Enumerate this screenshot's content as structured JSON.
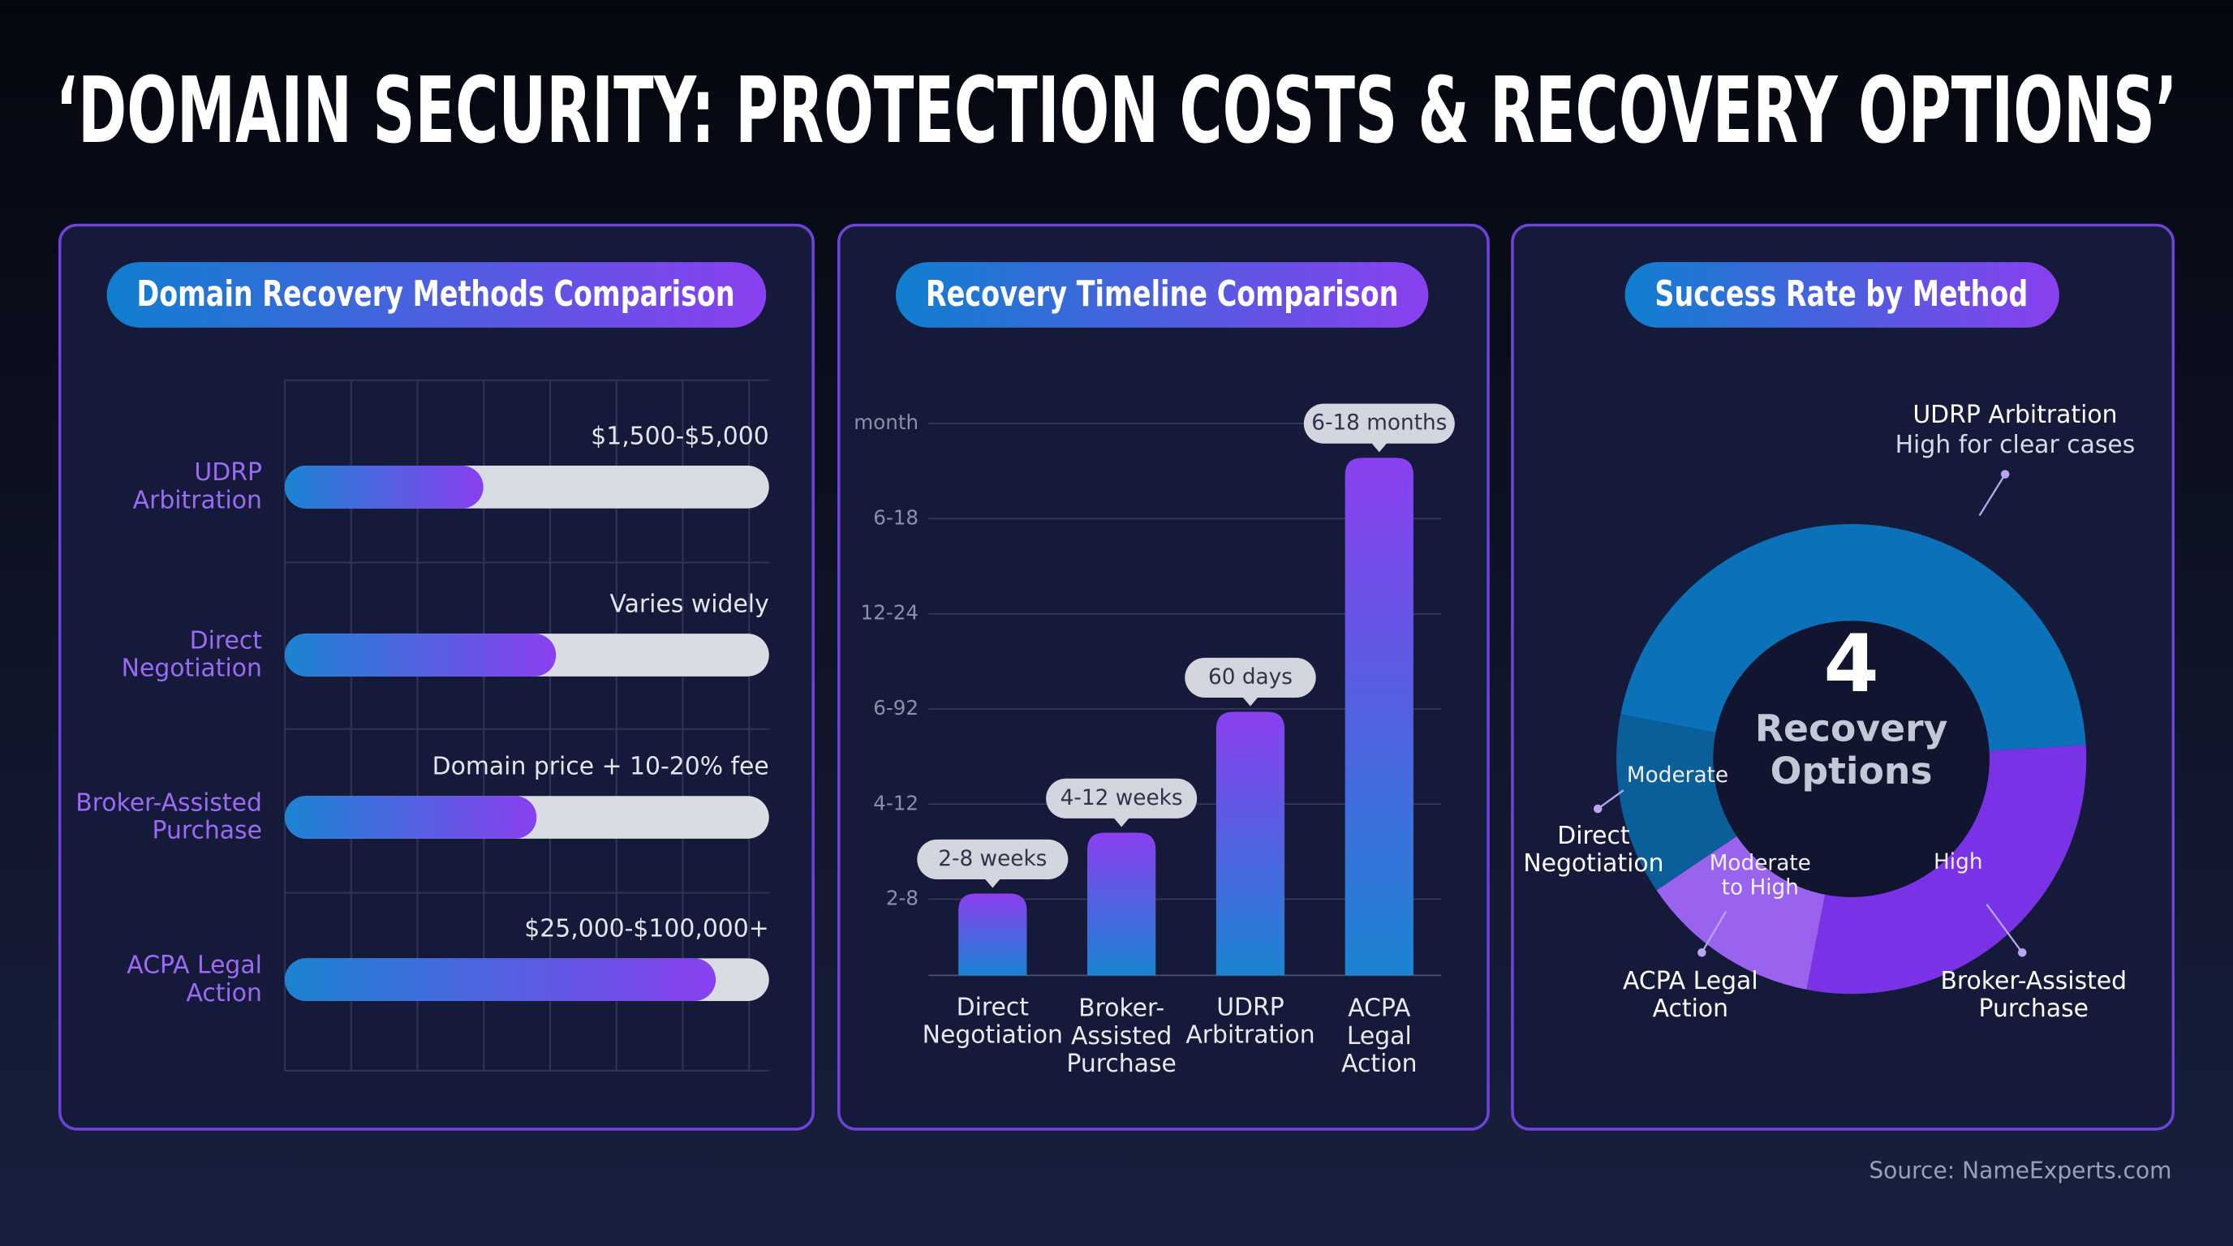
{
  "title": "‘DOMAIN SECURITY: PROTECTION COSTS & RECOVERY OPTIONS’",
  "source": "Source: NameExperts.com",
  "chart_data": [
    {
      "type": "hbar",
      "title": "Domain Recovery Methods Comparison",
      "categories": [
        "UDRP\nArbitration",
        "Direct\nNegotiation",
        "Broker-Assisted\nPurchase",
        "ACPA Legal\nAction"
      ],
      "values": [
        41,
        56,
        52,
        89
      ],
      "xlim": [
        0,
        100
      ],
      "annotations": [
        "$1,500-$5,000",
        "Varies widely",
        "Domain price + 10-20% fee",
        "$25,000-$100,000+"
      ],
      "colors": [
        "#1a84d2",
        "#8a3ff0"
      ],
      "track_color": "#d9dce3",
      "grid": true
    },
    {
      "type": "bar",
      "title": "Recovery Timeline Comparison",
      "categories": [
        "Direct\nNegotiation",
        "Broker-\nAssisted\nPurchase",
        "UDRP\nArbitration",
        "ACPA\nLegal\nAction"
      ],
      "values": [
        1.06,
        1.7,
        2.97,
        5.64
      ],
      "annotations": [
        "2-8 weeks",
        "4-12 weeks",
        "60 days",
        "6-18 months"
      ],
      "ylim": [
        0.2,
        6.5
      ],
      "yticks": [
        {
          "value": 1,
          "label": "2-8"
        },
        {
          "value": 2,
          "label": "4-12"
        },
        {
          "value": 3,
          "label": "6-92"
        },
        {
          "value": 4,
          "label": "12-24"
        },
        {
          "value": 5,
          "label": "6-18"
        },
        {
          "value": 6,
          "label": "month"
        }
      ],
      "colors": [
        "#1a84d2",
        "#8a3ff0"
      ],
      "grid": true
    },
    {
      "type": "donut",
      "title": "Success Rate by Method",
      "categories": [
        "UDRP Arbitration",
        "Broker-Assisted\nPurchase",
        "ACPA Legal\nAction",
        "Direct\nNegotiation"
      ],
      "values": [
        46,
        29,
        12.5,
        12.5
      ],
      "ratings": [
        "High for clear cases",
        "High",
        "Moderate\nto High",
        "Moderate"
      ],
      "colors": [
        "#0b72b9",
        "#7a32e6",
        "#9a63ee",
        "#0b5f98"
      ],
      "center_value": "4",
      "center_text": "Recovery\nOptions"
    }
  ]
}
